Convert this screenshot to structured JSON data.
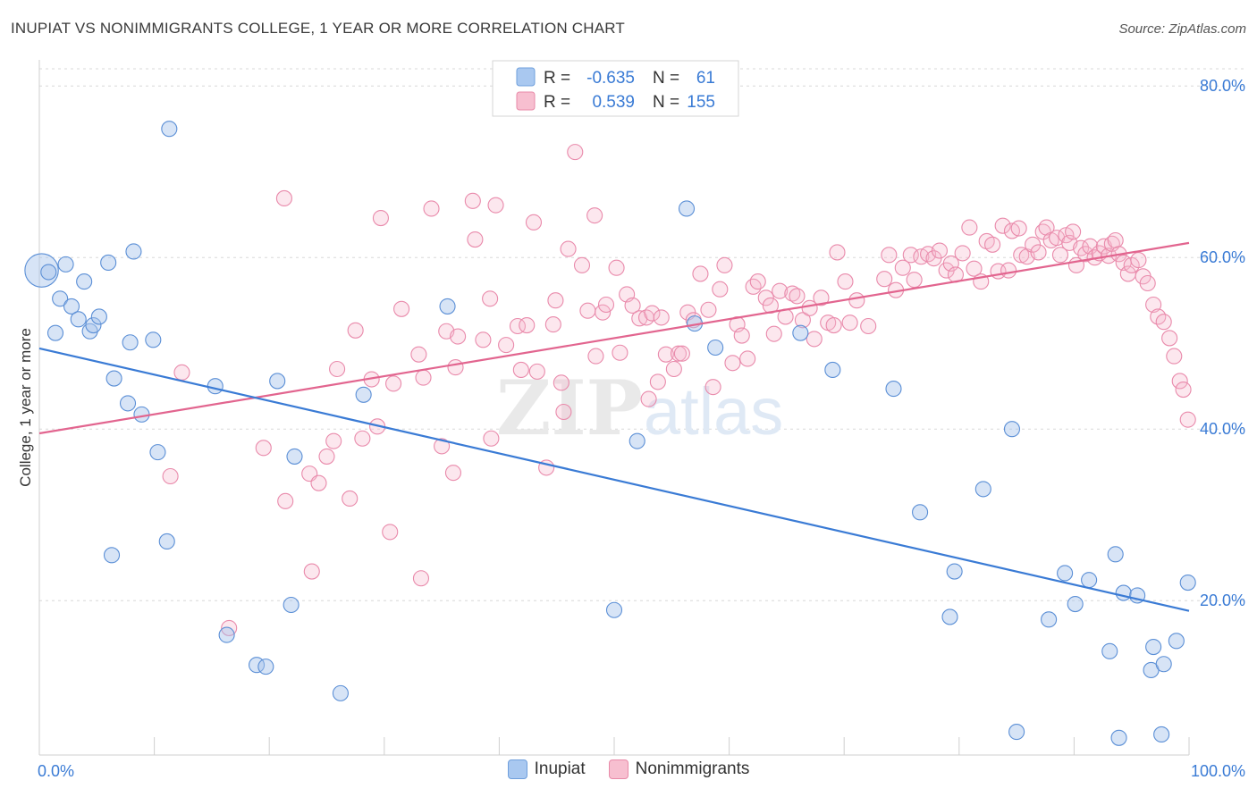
{
  "title": "INUPIAT VS NONIMMIGRANTS COLLEGE, 1 YEAR OR MORE CORRELATION CHART",
  "source": "Source: ZipAtlas.com",
  "watermark": {
    "part1": "ZIP",
    "part2": "atlas"
  },
  "legend_top": [
    {
      "swatch_color": "#a9c8f0",
      "swatch_border": "#6f9fdc",
      "r_label": "R =",
      "r_value": "-0.635",
      "n_label": "N =",
      "n_value": "61"
    },
    {
      "swatch_color": "#f7bfd0",
      "swatch_border": "#e88aa8",
      "r_label": "R =",
      "r_value": "0.539",
      "n_label": "N =",
      "n_value": "155"
    }
  ],
  "legend_bottom": [
    {
      "label": "Inupiat",
      "color": "#a9c8f0",
      "border": "#6f9fdc"
    },
    {
      "label": "Nonimmigrants",
      "color": "#f7bfd0",
      "border": "#e88aa8"
    }
  ],
  "colors": {
    "inupiat_fill": "rgba(166,196,236,0.45)",
    "inupiat_stroke": "#5b8fd6",
    "inupiat_line": "#3a7bd5",
    "non_fill": "rgba(246,186,205,0.35)",
    "non_stroke": "#e98aab",
    "non_line": "#e2658f",
    "tick_label": "#3a7bd5",
    "grid": "#d8d8d8"
  },
  "chart_data": {
    "type": "scatter",
    "title": "INUPIAT VS NONIMMIGRANTS COLLEGE, 1 YEAR OR MORE CORRELATION CHART",
    "xlabel": "",
    "ylabel": "College, 1 year or more",
    "xlim": [
      0,
      100
    ],
    "ylim": [
      2,
      82
    ],
    "x_tick_labels": [
      "0.0%",
      "100.0%"
    ],
    "y_ticks": [
      20,
      40,
      60,
      80
    ],
    "y_tick_labels": [
      "20.0%",
      "40.0%",
      "60.0%",
      "80.0%"
    ],
    "grid": true,
    "series": [
      {
        "name": "Inupiat",
        "r": -0.635,
        "n": 61,
        "trend": [
          [
            0,
            49.4
          ],
          [
            100,
            18.8
          ]
        ],
        "points": [
          [
            0.2,
            58.5,
            2.2
          ],
          [
            0.8,
            58.3,
            1.0
          ],
          [
            2.3,
            59.2,
            1.0
          ],
          [
            1.4,
            51.2,
            1.0
          ],
          [
            1.8,
            55.2,
            1.0
          ],
          [
            2.8,
            54.3,
            1.0
          ],
          [
            3.4,
            52.8,
            1.0
          ],
          [
            3.9,
            57.2,
            1.0
          ],
          [
            4.4,
            51.4,
            1.0
          ],
          [
            4.7,
            52.1,
            1.0
          ],
          [
            5.2,
            53.1,
            1.0
          ],
          [
            6.0,
            59.4,
            1.0
          ],
          [
            6.5,
            45.9,
            1.0
          ],
          [
            7.7,
            43.0,
            1.0
          ],
          [
            7.9,
            50.1,
            1.0
          ],
          [
            8.2,
            60.7,
            1.0
          ],
          [
            8.9,
            41.7,
            1.0
          ],
          [
            9.9,
            50.4,
            1.0
          ],
          [
            10.3,
            37.3,
            1.0
          ],
          [
            11.3,
            75.0,
            1.0
          ],
          [
            11.1,
            26.9,
            1.0
          ],
          [
            6.3,
            25.3,
            1.0
          ],
          [
            15.3,
            45.0,
            1.0
          ],
          [
            16.3,
            16.0,
            1.0
          ],
          [
            18.9,
            12.5,
            1.0
          ],
          [
            19.7,
            12.3,
            1.0
          ],
          [
            20.7,
            45.6,
            1.0
          ],
          [
            21.9,
            19.5,
            1.0
          ],
          [
            22.2,
            36.8,
            1.0
          ],
          [
            26.2,
            9.2,
            1.0
          ],
          [
            28.2,
            44.0,
            1.0
          ],
          [
            35.5,
            54.3,
            1.0
          ],
          [
            50.0,
            18.9,
            1.0
          ],
          [
            52.0,
            38.6,
            1.0
          ],
          [
            56.3,
            65.7,
            1.0
          ],
          [
            57.0,
            52.3,
            1.0
          ],
          [
            58.8,
            49.5,
            1.0
          ],
          [
            66.2,
            51.2,
            1.0
          ],
          [
            69.0,
            46.9,
            1.0
          ],
          [
            74.3,
            44.7,
            1.0
          ],
          [
            76.6,
            30.3,
            1.0
          ],
          [
            79.2,
            18.1,
            1.0
          ],
          [
            79.6,
            23.4,
            1.0
          ],
          [
            82.1,
            33.0,
            1.0
          ],
          [
            84.6,
            40.0,
            1.0
          ],
          [
            85.0,
            4.7,
            1.0
          ],
          [
            87.8,
            17.8,
            1.0
          ],
          [
            89.2,
            23.2,
            1.0
          ],
          [
            90.1,
            19.6,
            1.0
          ],
          [
            91.3,
            22.4,
            1.0
          ],
          [
            93.1,
            14.1,
            1.0
          ],
          [
            93.6,
            25.4,
            1.0
          ],
          [
            93.9,
            4.0,
            1.0
          ],
          [
            94.3,
            20.9,
            1.0
          ],
          [
            95.5,
            20.6,
            1.0
          ],
          [
            96.7,
            11.9,
            1.0
          ],
          [
            96.9,
            14.6,
            1.0
          ],
          [
            97.6,
            4.4,
            1.0
          ],
          [
            97.8,
            12.6,
            1.0
          ],
          [
            98.9,
            15.3,
            1.0
          ],
          [
            99.9,
            22.1,
            1.0
          ]
        ]
      },
      {
        "name": "Nonimmigrants",
        "r": 0.539,
        "n": 155,
        "trend": [
          [
            0,
            39.5
          ],
          [
            100,
            61.7
          ]
        ],
        "points": [
          [
            12.4,
            46.6,
            1.0
          ],
          [
            11.4,
            34.5,
            1.0
          ],
          [
            16.5,
            16.8,
            1.0
          ],
          [
            19.5,
            37.8,
            1.0
          ],
          [
            21.4,
            31.6,
            1.0
          ],
          [
            21.3,
            66.9,
            1.0
          ],
          [
            23.5,
            34.8,
            1.0
          ],
          [
            24.3,
            33.7,
            1.0
          ],
          [
            23.7,
            23.4,
            1.0
          ],
          [
            25.0,
            36.8,
            1.0
          ],
          [
            25.6,
            38.6,
            1.0
          ],
          [
            27.0,
            31.9,
            1.0
          ],
          [
            25.9,
            47.0,
            1.0
          ],
          [
            27.5,
            51.5,
            1.0
          ],
          [
            28.1,
            38.9,
            1.0
          ],
          [
            28.9,
            45.8,
            1.0
          ],
          [
            29.4,
            40.3,
            1.0
          ],
          [
            29.7,
            64.6,
            1.0
          ],
          [
            30.5,
            28.0,
            1.0
          ],
          [
            30.8,
            45.3,
            1.0
          ],
          [
            31.5,
            54.0,
            1.0
          ],
          [
            33.4,
            46.0,
            1.0
          ],
          [
            33.2,
            22.6,
            1.0
          ],
          [
            33.0,
            48.7,
            1.0
          ],
          [
            34.1,
            65.7,
            1.0
          ],
          [
            35.0,
            38.0,
            1.0
          ],
          [
            35.4,
            51.4,
            1.0
          ],
          [
            36.0,
            34.9,
            1.0
          ],
          [
            36.4,
            50.8,
            1.0
          ],
          [
            36.2,
            47.2,
            1.0
          ],
          [
            37.7,
            66.6,
            1.0
          ],
          [
            37.9,
            62.1,
            1.0
          ],
          [
            38.6,
            50.4,
            1.0
          ],
          [
            39.2,
            55.2,
            1.0
          ],
          [
            39.7,
            66.1,
            1.0
          ],
          [
            39.3,
            38.9,
            1.0
          ],
          [
            40.6,
            49.8,
            1.0
          ],
          [
            41.6,
            52.0,
            1.0
          ],
          [
            41.9,
            46.9,
            1.0
          ],
          [
            42.4,
            52.1,
            1.0
          ],
          [
            43.0,
            64.1,
            1.0
          ],
          [
            43.3,
            46.7,
            1.0
          ],
          [
            44.1,
            35.5,
            1.0
          ],
          [
            44.7,
            52.2,
            1.0
          ],
          [
            44.9,
            55.0,
            1.0
          ],
          [
            45.4,
            45.4,
            1.0
          ],
          [
            45.6,
            42.0,
            1.0
          ],
          [
            46.0,
            61.0,
            1.0
          ],
          [
            46.6,
            72.3,
            1.0
          ],
          [
            47.2,
            59.1,
            1.0
          ],
          [
            47.7,
            53.8,
            1.0
          ],
          [
            48.3,
            64.9,
            1.0
          ],
          [
            48.4,
            48.5,
            1.0
          ],
          [
            49.0,
            53.6,
            1.0
          ],
          [
            49.3,
            54.5,
            1.0
          ],
          [
            50.2,
            58.8,
            1.0
          ],
          [
            50.5,
            48.9,
            1.0
          ],
          [
            51.1,
            55.7,
            1.0
          ],
          [
            51.6,
            54.4,
            1.0
          ],
          [
            52.2,
            52.9,
            1.0
          ],
          [
            52.8,
            53.0,
            1.0
          ],
          [
            53.0,
            43.5,
            1.0
          ],
          [
            53.3,
            53.5,
            1.0
          ],
          [
            53.8,
            45.5,
            1.0
          ],
          [
            54.1,
            53.0,
            1.0
          ],
          [
            54.5,
            48.7,
            1.0
          ],
          [
            55.2,
            47.0,
            1.0
          ],
          [
            55.6,
            48.8,
            1.0
          ],
          [
            55.9,
            48.8,
            1.0
          ],
          [
            56.4,
            53.6,
            1.0
          ],
          [
            56.9,
            52.7,
            1.0
          ],
          [
            57.5,
            58.1,
            1.0
          ],
          [
            58.2,
            53.9,
            1.0
          ],
          [
            58.6,
            44.9,
            1.0
          ],
          [
            59.2,
            56.3,
            1.0
          ],
          [
            59.6,
            59.1,
            1.0
          ],
          [
            60.3,
            47.7,
            1.0
          ],
          [
            60.7,
            52.2,
            1.0
          ],
          [
            61.1,
            50.9,
            1.0
          ],
          [
            61.6,
            48.2,
            1.0
          ],
          [
            62.1,
            56.6,
            1.0
          ],
          [
            62.5,
            57.2,
            1.0
          ],
          [
            63.2,
            55.3,
            1.0
          ],
          [
            63.6,
            54.4,
            1.0
          ],
          [
            63.9,
            51.1,
            1.0
          ],
          [
            64.4,
            56.1,
            1.0
          ],
          [
            64.9,
            53.1,
            1.0
          ],
          [
            65.5,
            55.8,
            1.0
          ],
          [
            65.9,
            55.5,
            1.0
          ],
          [
            66.4,
            52.7,
            1.0
          ],
          [
            67.0,
            54.1,
            1.0
          ],
          [
            67.4,
            50.5,
            1.0
          ],
          [
            68.0,
            55.3,
            1.0
          ],
          [
            68.6,
            52.4,
            1.0
          ],
          [
            69.1,
            52.1,
            1.0
          ],
          [
            69.4,
            60.6,
            1.0
          ],
          [
            70.1,
            57.2,
            1.0
          ],
          [
            70.5,
            52.4,
            1.0
          ],
          [
            71.1,
            55.0,
            1.0
          ],
          [
            72.1,
            52.0,
            1.0
          ],
          [
            73.5,
            57.5,
            1.0
          ],
          [
            73.9,
            60.3,
            1.0
          ],
          [
            74.5,
            56.2,
            1.0
          ],
          [
            75.1,
            58.8,
            1.0
          ],
          [
            75.8,
            60.3,
            1.0
          ],
          [
            76.1,
            57.4,
            1.0
          ],
          [
            76.7,
            60.1,
            1.0
          ],
          [
            77.3,
            60.4,
            1.0
          ],
          [
            77.8,
            59.9,
            1.0
          ],
          [
            78.3,
            60.8,
            1.0
          ],
          [
            78.9,
            58.5,
            1.0
          ],
          [
            79.3,
            59.3,
            1.0
          ],
          [
            79.7,
            58.0,
            1.0
          ],
          [
            80.3,
            60.5,
            1.0
          ],
          [
            80.9,
            63.5,
            1.0
          ],
          [
            81.3,
            58.7,
            1.0
          ],
          [
            81.9,
            57.2,
            1.0
          ],
          [
            82.4,
            61.9,
            1.0
          ],
          [
            82.9,
            61.5,
            1.0
          ],
          [
            83.4,
            58.4,
            1.0
          ],
          [
            83.8,
            63.7,
            1.0
          ],
          [
            84.3,
            58.5,
            1.0
          ],
          [
            84.6,
            63.1,
            1.0
          ],
          [
            85.2,
            63.4,
            1.0
          ],
          [
            85.4,
            60.3,
            1.0
          ],
          [
            85.9,
            60.1,
            1.0
          ],
          [
            86.4,
            61.5,
            1.0
          ],
          [
            86.9,
            60.6,
            1.0
          ],
          [
            87.3,
            63.0,
            1.0
          ],
          [
            87.6,
            63.5,
            1.0
          ],
          [
            88.0,
            62.0,
            1.0
          ],
          [
            88.5,
            62.3,
            1.0
          ],
          [
            88.8,
            60.3,
            1.0
          ],
          [
            89.3,
            62.6,
            1.0
          ],
          [
            89.6,
            61.7,
            1.0
          ],
          [
            89.9,
            63.0,
            1.0
          ],
          [
            90.2,
            59.1,
            1.0
          ],
          [
            90.6,
            61.1,
            1.0
          ],
          [
            91.0,
            60.4,
            1.0
          ],
          [
            91.4,
            61.3,
            1.0
          ],
          [
            91.8,
            60.0,
            1.0
          ],
          [
            92.2,
            60.5,
            1.0
          ],
          [
            92.6,
            61.3,
            1.0
          ],
          [
            93.0,
            60.2,
            1.0
          ],
          [
            93.3,
            61.6,
            1.0
          ],
          [
            93.6,
            62.0,
            1.0
          ],
          [
            93.9,
            60.4,
            1.0
          ],
          [
            94.3,
            59.4,
            1.0
          ],
          [
            94.7,
            58.1,
            1.0
          ],
          [
            95.0,
            59.1,
            1.0
          ],
          [
            95.6,
            59.7,
            1.0
          ],
          [
            96.0,
            57.8,
            1.0
          ],
          [
            96.4,
            57.0,
            1.0
          ],
          [
            96.9,
            54.5,
            1.0
          ],
          [
            97.3,
            53.1,
            1.0
          ],
          [
            97.8,
            52.5,
            1.0
          ],
          [
            98.3,
            50.6,
            1.0
          ],
          [
            98.7,
            48.5,
            1.0
          ],
          [
            99.2,
            45.6,
            1.0
          ],
          [
            99.5,
            44.6,
            1.0
          ],
          [
            99.9,
            41.1,
            1.0
          ]
        ]
      }
    ]
  }
}
